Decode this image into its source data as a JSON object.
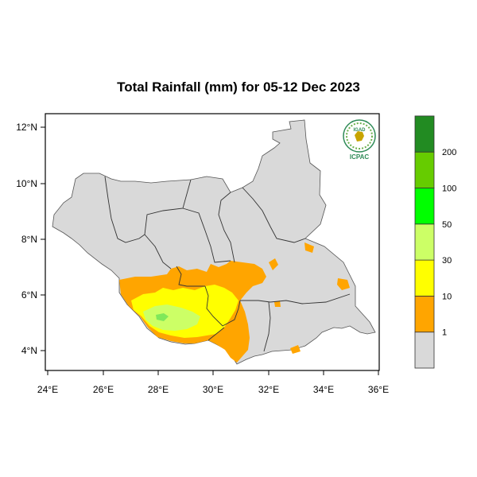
{
  "title": "Total Rainfall (mm) for 05-12 Dec 2023",
  "map": {
    "lon_ticks": [
      "24°E",
      "26°E",
      "28°E",
      "30°E",
      "32°E",
      "34°E",
      "36°E"
    ],
    "lat_ticks": [
      "12°N",
      "10°N",
      "8°N",
      "6°N",
      "4°N"
    ]
  },
  "logo": {
    "top_text": "IGAD",
    "bottom_text": "ICPAC"
  },
  "legend": {
    "bins": [
      {
        "color": "#d9d9d9"
      },
      {
        "color": "#ffa500"
      },
      {
        "color": "#ffff00"
      },
      {
        "color": "#ccff66"
      },
      {
        "color": "#00ff00"
      },
      {
        "color": "#66cc00"
      },
      {
        "color": "#228b22"
      }
    ],
    "labels": [
      "1",
      "10",
      "30",
      "50",
      "100",
      "200"
    ]
  }
}
